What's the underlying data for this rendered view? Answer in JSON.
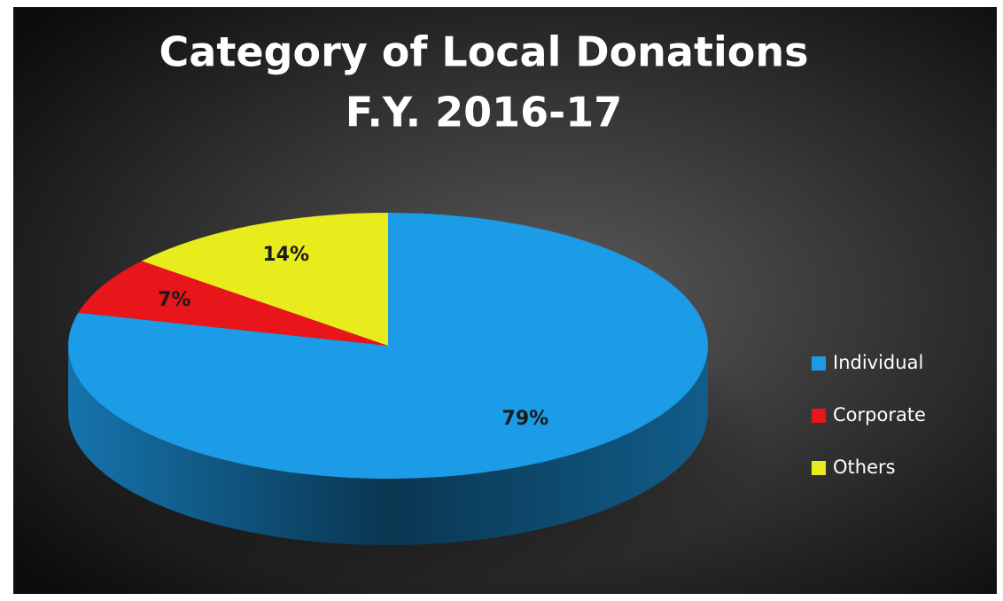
{
  "chart_data": {
    "type": "pie",
    "title": [
      "Category of Local Donations",
      "F.Y. 2016-17"
    ],
    "categories": [
      "Individual",
      "Corporate",
      "Others"
    ],
    "values": [
      79,
      7,
      14
    ],
    "value_labels": [
      "79%",
      "7%",
      "14%"
    ],
    "colors": [
      "#1c9be6",
      "#e8161b",
      "#e8eb1c"
    ],
    "legend": "right"
  }
}
